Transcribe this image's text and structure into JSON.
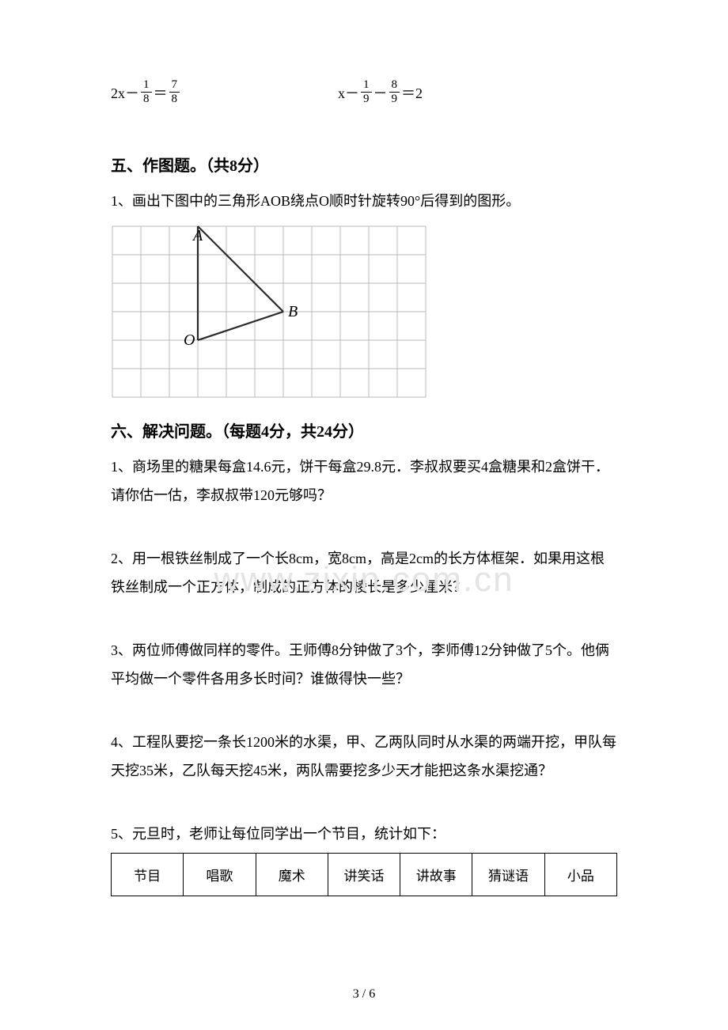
{
  "equations": {
    "left": {
      "lhs_prefix": "2x－",
      "f1_num": "1",
      "f1_den": "8",
      "op": "＝",
      "f2_num": "7",
      "f2_den": "8"
    },
    "right": {
      "lhs_prefix": "x－",
      "f1_num": "1",
      "f1_den": "9",
      "op1": "－",
      "f2_num": "8",
      "f2_den": "9",
      "op2": "＝2"
    }
  },
  "section5": {
    "title": "五、作图题。（共8分）",
    "q1": "1、画出下图中的三角形AOB绕点O顺时针旋转90°后得到的图形。",
    "figure": {
      "cols": 11,
      "rows": 6,
      "cell": 36,
      "grid_color": "#b9b9b9",
      "line_color": "#2a2a2a",
      "label_font": "italic 20px serif",
      "A": {
        "col": 3,
        "row": 0,
        "label": "A"
      },
      "O": {
        "col": 3,
        "row": 4,
        "label": "O"
      },
      "B": {
        "col": 6,
        "row": 3,
        "label": "B"
      }
    }
  },
  "section6": {
    "title": "六、解决问题。（每题4分，共24分）",
    "q1": "1、商场里的糖果每盒14.6元，饼干每盒29.8元．李叔叔要买4盒糖果和2盒饼干．请你估一估，李叔叔带120元够吗？",
    "q2": "2、用一根铁丝制成了一个长8cm，宽8cm，高是2cm的长方体框架．如果用这根铁丝制成一个正方体，制成的正方体的棱长是多少厘米？",
    "q3": "3、两位师傅做同样的零件。王师傅8分钟做了3个，李师傅12分钟做了5个。他俩平均做一个零件各用多长时间？谁做得快一些？",
    "q4": "4、工程队要挖一条长1200米的水渠，甲、乙两队同时从水渠的两端开挖，甲队每天挖35米，乙队每天挖45米，两队需要挖多少天才能把这条水渠挖通？",
    "q5": "5、元旦时，老师让每位同学出一个节目，统计如下：",
    "table": {
      "cells": [
        "节目",
        "唱歌",
        "魔术",
        "讲笑话",
        "讲故事",
        "猜谜语",
        "小品"
      ]
    }
  },
  "watermark": "www.zixin.com.cn",
  "page_number": "3 / 6"
}
